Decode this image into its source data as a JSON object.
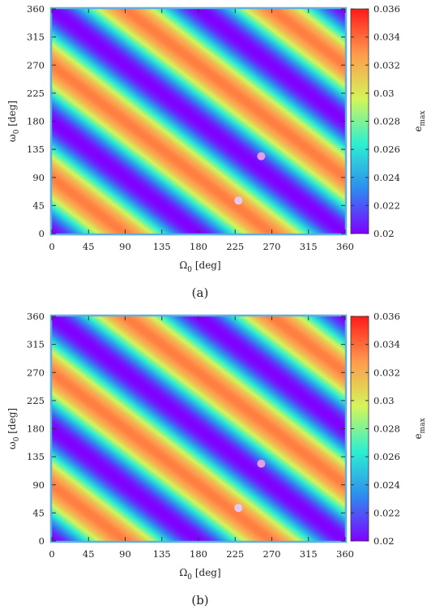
{
  "chart_data": [
    {
      "type": "heatmap",
      "caption": "(a)",
      "xlabel_main": "Ω",
      "xlabel_sub": "0",
      "xlabel_unit": " [deg]",
      "ylabel_main": "ω",
      "ylabel_sub": "0",
      "ylabel_unit": " [deg]",
      "colorbar_main": "e",
      "colorbar_sub": "max",
      "xlim": [
        0,
        360
      ],
      "ylim": [
        0,
        360
      ],
      "xticks": [
        0,
        45,
        90,
        135,
        180,
        225,
        270,
        315,
        360
      ],
      "yticks": [
        0,
        45,
        90,
        135,
        180,
        225,
        270,
        315,
        360
      ],
      "clim": [
        0.02,
        0.036
      ],
      "cticks": [
        "0.02",
        "0.022",
        "0.024",
        "0.026",
        "0.028",
        "0.03",
        "0.032",
        "0.034",
        "0.036"
      ],
      "colormap": [
        "#8000ff",
        "#2d8cf0",
        "#2df0d0",
        "#d4f55a",
        "#ff9a4d",
        "#ff1a1a"
      ],
      "field": {
        "min_line_at_x0": 360,
        "period_deg": 180,
        "min": 0.02,
        "max": 0.0335
      },
      "points": [
        {
          "x": 229,
          "y": 53,
          "color": "#e6c8f0"
        },
        {
          "x": 257,
          "y": 124,
          "color": "#e99ae6"
        }
      ]
    },
    {
      "type": "heatmap",
      "caption": "(b)",
      "xlabel_main": "Ω",
      "xlabel_sub": "0",
      "xlabel_unit": " [deg]",
      "ylabel_main": "ω",
      "ylabel_sub": "0",
      "ylabel_unit": " [deg]",
      "colorbar_main": "e",
      "colorbar_sub": "max",
      "xlim": [
        0,
        360
      ],
      "ylim": [
        0,
        360
      ],
      "xticks": [
        0,
        45,
        90,
        135,
        180,
        225,
        270,
        315,
        360
      ],
      "yticks": [
        0,
        45,
        90,
        135,
        180,
        225,
        270,
        315,
        360
      ],
      "clim": [
        0.02,
        0.036
      ],
      "cticks": [
        "0.02",
        "0.022",
        "0.024",
        "0.026",
        "0.028",
        "0.03",
        "0.032",
        "0.034",
        "0.036"
      ],
      "colormap": [
        "#8000ff",
        "#2d8cf0",
        "#2df0d0",
        "#d4f55a",
        "#ff9a4d",
        "#ff1a1a"
      ],
      "field": {
        "min_line_at_x0": 360,
        "period_deg": 180,
        "min": 0.02,
        "max": 0.0335
      },
      "points": [
        {
          "x": 229,
          "y": 53,
          "color": "#e6c8f0"
        },
        {
          "x": 257,
          "y": 124,
          "color": "#e99ae6"
        }
      ]
    }
  ]
}
